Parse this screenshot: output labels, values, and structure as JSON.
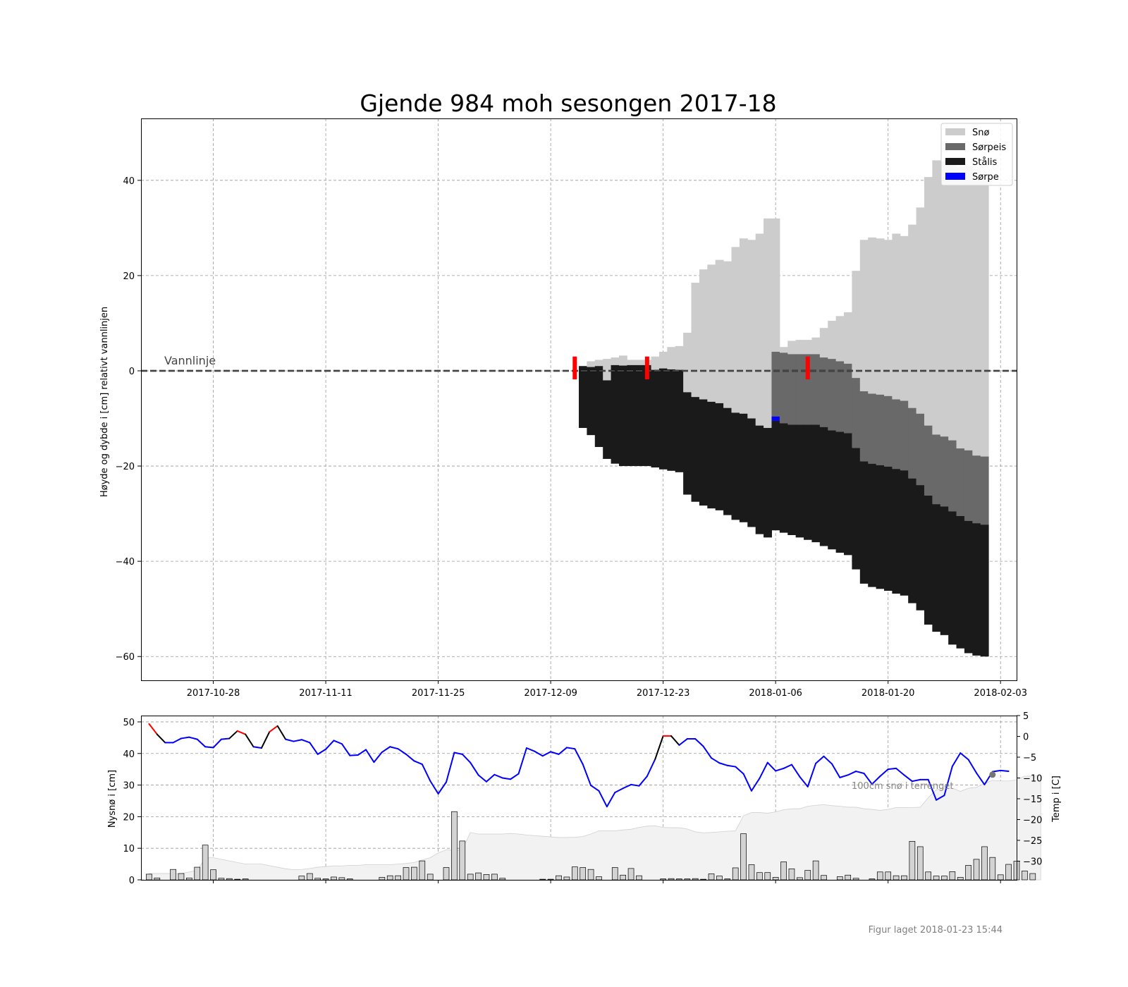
{
  "title": "Gjende 984 moh sesongen 2017-18",
  "footer": "Figur laget 2018-01-23 15:44",
  "colors": {
    "snow": "#cccccc",
    "slush_ice": "#696969",
    "black_ice": "#1a1a1a",
    "slush": "#0000ff",
    "temp_line": "#0000ff",
    "temp_warm": "#ff0000",
    "marker": "#ff0000",
    "new_snow_bar": "#d3d3d3",
    "terrain_snow": "#f2f2f2"
  },
  "chart_data": [
    {
      "type": "bar",
      "title": "Gjende 984 moh sesongen 2017-18",
      "ylabel": "Høyde og dybde i [cm] relativt vannlinjen",
      "ylim": [
        -65,
        53
      ],
      "xlim_dates": [
        "2017-10-19",
        "2018-02-05"
      ],
      "x_ticks": [
        "2017-10-28",
        "2017-11-11",
        "2017-11-25",
        "2017-12-09",
        "2017-12-23",
        "2018-01-06",
        "2018-01-20",
        "2018-02-03"
      ],
      "y_ticks": [
        40,
        20,
        0,
        -20,
        -40,
        -60
      ],
      "y_tick_labels": [
        "40",
        "20",
        "0",
        "−20",
        "−40",
        "−60"
      ],
      "grid": true,
      "legend_position": "top-right",
      "legend": [
        "Snø",
        "Sørpeis",
        "Stålis",
        "Sørpe"
      ],
      "waterline_label": "Vannlinje",
      "layers": {
        "dates": [
          "2017-12-13",
          "2017-12-14",
          "2017-12-15",
          "2017-12-16",
          "2017-12-17",
          "2017-12-18",
          "2017-12-19",
          "2017-12-20",
          "2017-12-21",
          "2017-12-22",
          "2017-12-23",
          "2017-12-24",
          "2017-12-25",
          "2017-12-26",
          "2017-12-27",
          "2017-12-28",
          "2017-12-29",
          "2017-12-30",
          "2017-12-31",
          "2018-01-01",
          "2018-01-02",
          "2018-01-03",
          "2018-01-04",
          "2018-01-05",
          "2018-01-06",
          "2018-01-07",
          "2018-01-08",
          "2018-01-09",
          "2018-01-10",
          "2018-01-11",
          "2018-01-12",
          "2018-01-13",
          "2018-01-14",
          "2018-01-15",
          "2018-01-16",
          "2018-01-17",
          "2018-01-18",
          "2018-01-19",
          "2018-01-20",
          "2018-01-21",
          "2018-01-22",
          "2018-01-23",
          "2018-01-24",
          "2018-01-25",
          "2018-01-26",
          "2018-01-27",
          "2018-01-28",
          "2018-01-29",
          "2018-01-30",
          "2018-01-31",
          "2018-02-01"
        ],
        "black_ice_bottom": [
          -12,
          -13.5,
          -16,
          -18.5,
          -19.5,
          -20,
          -20,
          -20,
          -20,
          -20.3,
          -20.7,
          -21,
          -21.3,
          -26,
          -27.5,
          -28.3,
          -28.9,
          -29.3,
          -30.3,
          -31.3,
          -31.8,
          -32.8,
          -34.3,
          -35,
          -33.5,
          -34,
          -34.5,
          -35,
          -35.5,
          -36,
          -36.8,
          -37.5,
          -38.2,
          -38.7,
          -41.7,
          -44.7,
          -45.4,
          -45.8,
          -46.2,
          -46.8,
          -47.2,
          -48.8,
          -50.3,
          -53.3,
          -54.8,
          -55.5,
          -57.5,
          -58.3,
          -59.3,
          -59.8,
          -60
        ],
        "black_ice_top": [
          1,
          0.8,
          1,
          -2,
          1.2,
          1.1,
          1.2,
          1.2,
          1.2,
          0.2,
          0.5,
          0.3,
          0.2,
          -4.5,
          -5.5,
          -6,
          -6.5,
          -6.8,
          -7.8,
          -8.8,
          -9,
          -10,
          -11.5,
          -12,
          -10.5,
          -11,
          -11.3,
          -11.3,
          -11.3,
          -11.3,
          -11.8,
          -12.5,
          -12.8,
          -13.1,
          -16.2,
          -19,
          -19.5,
          -19.8,
          -20.1,
          -20.6,
          -20.9,
          -22.6,
          -24,
          -26.2,
          -28,
          -28.5,
          -29.5,
          -30.5,
          -31.5,
          -32,
          -32.3
        ],
        "slush_ice_top": [
          1,
          0.8,
          1,
          -2,
          1.2,
          1.1,
          1.2,
          1.2,
          1.2,
          0.2,
          0.5,
          0.3,
          0.2,
          -4.5,
          -5.5,
          -6,
          -6.5,
          -6.8,
          -7.8,
          -8.8,
          -9,
          -10,
          -11.5,
          -12,
          4,
          3.8,
          3.5,
          3.5,
          3.5,
          3.5,
          2.8,
          2.5,
          2,
          1.5,
          -1.5,
          -4.3,
          -4.8,
          -5,
          -5.3,
          -6,
          -6.3,
          -7.8,
          -9,
          -11.5,
          -13.4,
          -13.8,
          -14.6,
          -16.3,
          -16.7,
          -17.8,
          -18
        ],
        "snow_top": [
          1,
          2,
          2.3,
          2.5,
          2.8,
          3.2,
          2.3,
          2.3,
          2.3,
          3,
          4,
          5,
          5.2,
          8,
          18.5,
          21.3,
          22.3,
          23.3,
          23,
          26,
          27.8,
          27.5,
          28.8,
          32,
          32,
          5,
          6.3,
          6.5,
          6.5,
          7,
          9,
          10.5,
          11.5,
          12.3,
          21,
          27.5,
          28,
          27.8,
          27.5,
          28.8,
          28.3,
          30.7,
          34.3,
          40.7,
          44.2,
          44,
          43.3,
          42.8,
          43,
          42.3,
          41
        ]
      },
      "slush_segments": [
        {
          "date": "2018-01-06",
          "top": -9.6,
          "bottom": -10.5
        }
      ],
      "markers": [
        {
          "date": "2017-12-12",
          "top": 3,
          "bottom": -1.8
        },
        {
          "date": "2017-12-21",
          "top": 3,
          "bottom": -1.8
        },
        {
          "date": "2018-01-10",
          "top": 3,
          "bottom": -1.8
        }
      ]
    },
    {
      "type": "bar",
      "ylabel": "Nysnø i [cm]",
      "ylabel_right": "Temp i [C]",
      "ylim": [
        0,
        52
      ],
      "ylim_right": [
        -34.5,
        5
      ],
      "y_ticks": [
        0,
        10,
        20,
        30,
        40,
        50
      ],
      "y_ticks_right": [
        5,
        0,
        -5,
        -10,
        -15,
        -20,
        -25,
        -30
      ],
      "y_tick_labels_right": [
        "5",
        "0",
        "−5",
        "−10",
        "−15",
        "−20",
        "−25",
        "−30"
      ],
      "grid": true,
      "terrain_annotation": "100cm snø i terrenget",
      "start_date": "2017-10-20",
      "new_snow": [
        1.8,
        0.6,
        0,
        3.3,
        2,
        0.6,
        4,
        11,
        3.2,
        0.5,
        0.4,
        0.2,
        0.3,
        0,
        0,
        0,
        0,
        0,
        0,
        1.2,
        2,
        0.5,
        0.3,
        0.9,
        0.7,
        0.3,
        0,
        0,
        0,
        0.8,
        1.3,
        1.3,
        3.9,
        4,
        6,
        1.8,
        0,
        3.9,
        21.6,
        12.3,
        1.8,
        2.2,
        1.7,
        1.8,
        0.5,
        0,
        0,
        0,
        0,
        0.2,
        0.2,
        1.3,
        0.9,
        4.1,
        3.9,
        3.3,
        1,
        0,
        3.9,
        1.5,
        3.6,
        1.3,
        0,
        0,
        0.3,
        0.4,
        0.3,
        0.3,
        0.4,
        0.2,
        1.9,
        1.2,
        0.3,
        3.8,
        14.6,
        4.8,
        2.3,
        2.3,
        0.8,
        5.7,
        3.5,
        0.7,
        3,
        6,
        1.4,
        0,
        1,
        1.5,
        0.5,
        0,
        0.3,
        2.5,
        2.5,
        1.3,
        1.3,
        12.2,
        10.5,
        2.5,
        1.2,
        1.2,
        2.6,
        0.8,
        4.6,
        6.5,
        10.5,
        7.1,
        1.6,
        4.9,
        5.9,
        2.8,
        2
      ],
      "terrain_snow": [
        2,
        2,
        2,
        2,
        2,
        2.5,
        3,
        7,
        7,
        6.5,
        6,
        5.5,
        5,
        5,
        5,
        4.5,
        4,
        3.5,
        3.2,
        3.3,
        3.6,
        4,
        4.2,
        4.4,
        4.4,
        4.6,
        4.6,
        4.8,
        4.8,
        4.8,
        4.8,
        5,
        5.2,
        5.5,
        6.3,
        7,
        8.5,
        9.5,
        9.3,
        9.5,
        15,
        14.5,
        14.5,
        14.5,
        14.5,
        14.7,
        14.5,
        14.2,
        14,
        13.8,
        13.6,
        13.4,
        13.4,
        13.5,
        13.7,
        14.5,
        15.5,
        15.5,
        15.5,
        15.8,
        16,
        16.6,
        17,
        17.1,
        16.6,
        16.5,
        16.5,
        16.1,
        15.2,
        14.9,
        15,
        15.2,
        15.4,
        15.5,
        20.3,
        21.3,
        21.3,
        21.1,
        21.5,
        22.2,
        22.5,
        22.5,
        23.3,
        23.6,
        23.8,
        23.5,
        23.3,
        23,
        23,
        22.5,
        22.3,
        22,
        22.3,
        22.9,
        22.9,
        22.9,
        23,
        26,
        28.5,
        29,
        29,
        28,
        29,
        29.3,
        30.5,
        31.5,
        31.3,
        31.3,
        31.7,
        32.8,
        32.8,
        33
      ],
      "temperature": [
        3,
        0.5,
        -1.5,
        -1.5,
        -0.5,
        -0.2,
        -0.7,
        -2.5,
        -2.7,
        -0.7,
        -0.5,
        1.3,
        0.5,
        -2.5,
        -2.8,
        1.1,
        2.5,
        -0.7,
        -1.2,
        -0.8,
        -1.5,
        -4.3,
        -3.1,
        -1,
        -1.8,
        -4.6,
        -4.5,
        -3.2,
        -6.2,
        -3.8,
        -2.5,
        -3,
        -4.3,
        -5.9,
        -6.7,
        -10.7,
        -13.8,
        -11,
        -3.9,
        -4.3,
        -6.3,
        -9.3,
        -10.9,
        -9.2,
        -10,
        -10.3,
        -9,
        -2.8,
        -3.6,
        -4.7,
        -3.7,
        -4.3,
        -2.7,
        -3,
        -6.7,
        -11.8,
        -13.1,
        -16.9,
        -13.5,
        -12.5,
        -11.6,
        -11.9,
        -9.6,
        -5.5,
        0.1,
        0.1,
        -2.1,
        -0.6,
        -0.6,
        -2.4,
        -5.2,
        -6.4,
        -7,
        -7.3,
        -9,
        -13.1,
        -10.1,
        -6.3,
        -8.3,
        -7.7,
        -6.8,
        -9.7,
        -12.1,
        -6.5,
        -4.8,
        -6.6,
        -9.9,
        -9.3,
        -8.4,
        -8.9,
        -11.5,
        -9.6,
        -7.9,
        -7.7,
        -9.3,
        -10.8,
        -10.4,
        -10.4,
        -15.3,
        -14.2,
        -7.2,
        -4,
        -5.6,
        -8.8,
        -11.6,
        -8.5,
        -8.2,
        -8.4
      ]
    }
  ]
}
